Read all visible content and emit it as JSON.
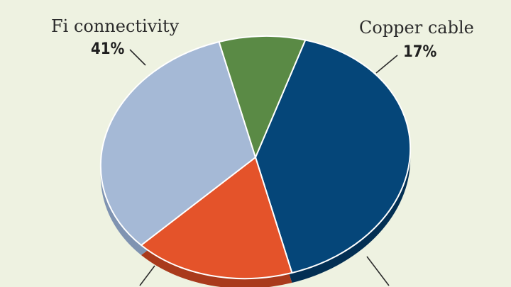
{
  "chart_data": {
    "type": "pie",
    "title": "",
    "slices": [
      {
        "name": "Fi connectivity",
        "value": 41,
        "label": "41%",
        "color": "#054679",
        "side": "#032f53"
      },
      {
        "name": "Copper cable",
        "value": 17,
        "label": "17%",
        "color": "#e4532a",
        "side": "#a93a1c"
      },
      {
        "name": "",
        "value": 33,
        "label": "",
        "color": "#a5b9d6",
        "side": "#7f93b1"
      },
      {
        "name": "",
        "value": 9,
        "label": "",
        "color": "#5a8a45",
        "side": "#3d6230"
      }
    ],
    "legend": "none",
    "grid": false
  }
}
